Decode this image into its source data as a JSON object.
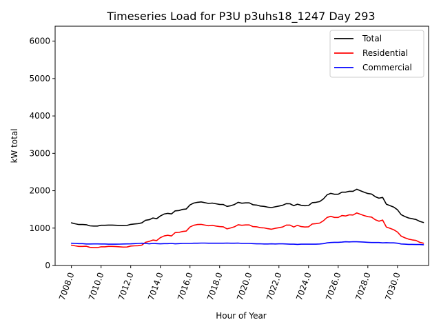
{
  "chart_data": {
    "type": "line",
    "title": "Timeseries Load for P3U p3uhs18_1247  Day 293",
    "xlabel": "Hour of Year",
    "ylabel": "kW total",
    "xlim": [
      7006.9,
      7032.1
    ],
    "ylim": [
      0,
      6400
    ],
    "xticks": [
      7008,
      7010,
      7012,
      7014,
      7016,
      7018,
      7020,
      7022,
      7024,
      7026,
      7028,
      7030
    ],
    "xtick_labels": [
      "7008.0",
      "7010.0",
      "7012.0",
      "7014.0",
      "7016.0",
      "7018.0",
      "7020.0",
      "7022.0",
      "7024.0",
      "7026.0",
      "7028.0",
      "7030.0"
    ],
    "yticks": [
      0,
      1000,
      2000,
      3000,
      4000,
      5000,
      6000
    ],
    "ytick_labels": [
      "0",
      "1000",
      "2000",
      "3000",
      "4000",
      "5000",
      "6000"
    ],
    "grid": false,
    "legend_position": "top-right",
    "x": [
      7008.0,
      7008.25,
      7008.5,
      7008.75,
      7009.0,
      7009.25,
      7009.5,
      7009.75,
      7010.0,
      7010.25,
      7010.5,
      7010.75,
      7011.0,
      7011.25,
      7011.5,
      7011.75,
      7012.0,
      7012.25,
      7012.5,
      7012.75,
      7013.0,
      7013.25,
      7013.5,
      7013.75,
      7014.0,
      7014.25,
      7014.5,
      7014.75,
      7015.0,
      7015.25,
      7015.5,
      7015.75,
      7016.0,
      7016.25,
      7016.5,
      7016.75,
      7017.0,
      7017.25,
      7017.5,
      7017.75,
      7018.0,
      7018.25,
      7018.5,
      7018.75,
      7019.0,
      7019.25,
      7019.5,
      7019.75,
      7020.0,
      7020.25,
      7020.5,
      7020.75,
      7021.0,
      7021.25,
      7021.5,
      7021.75,
      7022.0,
      7022.25,
      7022.5,
      7022.75,
      7023.0,
      7023.25,
      7023.5,
      7023.75,
      7024.0,
      7024.25,
      7024.5,
      7024.75,
      7025.0,
      7025.25,
      7025.5,
      7025.75,
      7026.0,
      7026.25,
      7026.5,
      7026.75,
      7027.0,
      7027.25,
      7027.5,
      7027.75,
      7028.0,
      7028.25,
      7028.5,
      7028.75,
      7029.0,
      7029.25,
      7029.5,
      7029.75,
      7030.0,
      7030.25,
      7030.5,
      7030.75,
      7031.0,
      7031.25,
      7031.5,
      7031.75
    ],
    "series": [
      {
        "name": "Total",
        "color": "#000000",
        "values": [
          1140,
          1115,
          1095,
          1095,
          1090,
          1060,
          1055,
          1055,
          1075,
          1075,
          1080,
          1080,
          1075,
          1072,
          1068,
          1072,
          1100,
          1110,
          1120,
          1140,
          1210,
          1225,
          1270,
          1250,
          1325,
          1375,
          1395,
          1380,
          1460,
          1470,
          1500,
          1510,
          1620,
          1670,
          1690,
          1700,
          1680,
          1660,
          1670,
          1650,
          1635,
          1630,
          1580,
          1600,
          1630,
          1690,
          1665,
          1675,
          1675,
          1625,
          1615,
          1590,
          1580,
          1560,
          1550,
          1570,
          1590,
          1610,
          1655,
          1650,
          1600,
          1640,
          1610,
          1600,
          1605,
          1680,
          1690,
          1710,
          1780,
          1890,
          1930,
          1905,
          1905,
          1960,
          1960,
          1985,
          1985,
          2040,
          2000,
          1960,
          1925,
          1910,
          1840,
          1800,
          1820,
          1640,
          1600,
          1560,
          1490,
          1360,
          1310,
          1270,
          1250,
          1230,
          1180,
          1150
        ]
      },
      {
        "name": "Residential",
        "color": "#ff0000",
        "values": [
          545,
          525,
          510,
          510,
          515,
          485,
          478,
          478,
          500,
          500,
          510,
          510,
          505,
          500,
          493,
          495,
          520,
          525,
          530,
          545,
          620,
          645,
          680,
          665,
          745,
          790,
          810,
          790,
          880,
          885,
          910,
          920,
          1030,
          1075,
          1095,
          1100,
          1080,
          1065,
          1075,
          1055,
          1040,
          1035,
          980,
          1005,
          1035,
          1090,
          1075,
          1085,
          1085,
          1040,
          1035,
          1010,
          1005,
          985,
          970,
          995,
          1010,
          1030,
          1080,
          1080,
          1030,
          1075,
          1040,
          1030,
          1035,
          1110,
          1120,
          1135,
          1195,
          1285,
          1315,
          1285,
          1285,
          1335,
          1325,
          1355,
          1350,
          1405,
          1370,
          1335,
          1305,
          1295,
          1225,
          1185,
          1215,
          1030,
          995,
          955,
          895,
          785,
          740,
          705,
          685,
          670,
          620,
          595
        ]
      },
      {
        "name": "Commercial",
        "color": "#0000ff",
        "values": [
          595,
          590,
          585,
          585,
          575,
          575,
          577,
          577,
          575,
          575,
          570,
          570,
          570,
          572,
          575,
          577,
          580,
          585,
          590,
          595,
          590,
          580,
          590,
          585,
          580,
          585,
          585,
          590,
          580,
          585,
          590,
          590,
          590,
          595,
          595,
          600,
          600,
          595,
          595,
          595,
          595,
          595,
          600,
          595,
          595,
          600,
          590,
          590,
          590,
          585,
          580,
          580,
          575,
          575,
          580,
          575,
          580,
          580,
          575,
          570,
          570,
          565,
          570,
          570,
          570,
          570,
          570,
          575,
          585,
          605,
          615,
          620,
          620,
          625,
          635,
          630,
          635,
          635,
          630,
          625,
          620,
          615,
          615,
          615,
          605,
          610,
          605,
          605,
          595,
          575,
          570,
          565,
          565,
          560,
          560,
          555
        ]
      }
    ]
  }
}
